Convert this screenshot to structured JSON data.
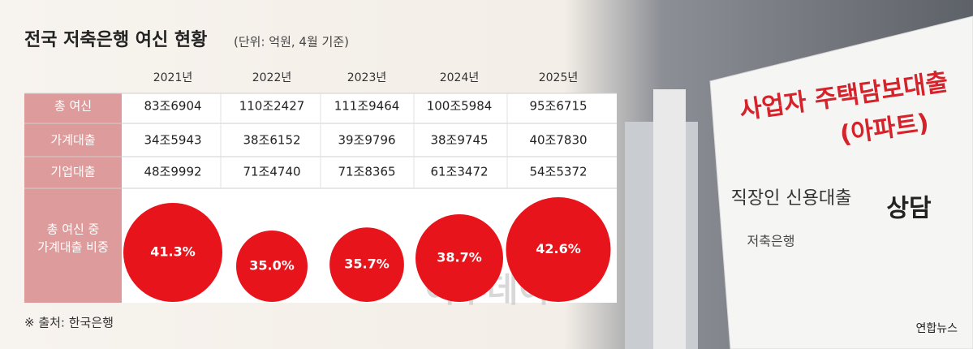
{
  "header": {
    "title": "전국 저축은행 여신 현황",
    "unit": "(단위: 억원, 4월 기준)"
  },
  "table": {
    "columns": [
      "2021년",
      "2022년",
      "2023년",
      "2024년",
      "2025년"
    ],
    "rows": [
      {
        "label": "총 여신",
        "cells": [
          "83조6904",
          "110조2427",
          "111조9464",
          "100조5984",
          "95조6715"
        ]
      },
      {
        "label": "가계대출",
        "cells": [
          "34조5943",
          "38조6152",
          "39조9796",
          "38조9745",
          "40조7830"
        ]
      },
      {
        "label": "기업대출",
        "cells": [
          "48조9992",
          "71조4740",
          "71조8365",
          "61조3472",
          "54조5372"
        ]
      }
    ]
  },
  "ratio": {
    "label": [
      "총 여신 중",
      "가계대출 비중"
    ],
    "values": [
      41.3,
      35.0,
      35.7,
      38.7,
      42.6
    ],
    "value_labels": [
      "41.3%",
      "35.0%",
      "35.7%",
      "38.7%",
      "42.6%"
    ],
    "color": "#e8141c"
  },
  "photo_signs": [
    "사업자 주택담보대출",
    "(아파트)",
    "직장인 신용대출",
    "상담",
    "저축은행"
  ],
  "source": "※ 출처: 한국은행",
  "watermark": "이투데이",
  "credit": "연합뉴스"
}
